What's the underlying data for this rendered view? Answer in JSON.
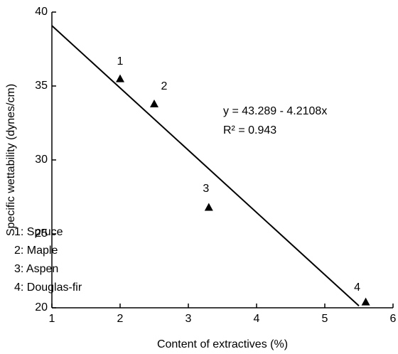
{
  "chart_data": {
    "type": "scatter",
    "x_label": "Content of extractives (%)",
    "y_label": "Specific wettability (dynes/cm)",
    "xlim": [
      1,
      6
    ],
    "ylim": [
      20,
      40
    ],
    "xticks": [
      1,
      2,
      3,
      4,
      5,
      6
    ],
    "yticks": [
      20,
      25,
      30,
      35,
      40
    ],
    "series": [
      {
        "kind": "points",
        "marker": "triangle",
        "color": "#000000",
        "x": [
          2,
          2.5,
          3.3,
          5.6
        ],
        "values": [
          35.5,
          33.8,
          26.8,
          20.4
        ],
        "point_labels": [
          "1",
          "2",
          "3",
          "4"
        ]
      },
      {
        "kind": "line",
        "color": "#000000",
        "x": [
          1,
          5.5
        ],
        "values": [
          39.08,
          20.13
        ]
      }
    ],
    "annotations": [
      "y = 43.289 - 4.2108x",
      "R² = 0.943"
    ],
    "legend_notes": [
      "1: Spruce",
      "2: Maple",
      "3: Aspen",
      "4: Douglas-fir"
    ]
  }
}
